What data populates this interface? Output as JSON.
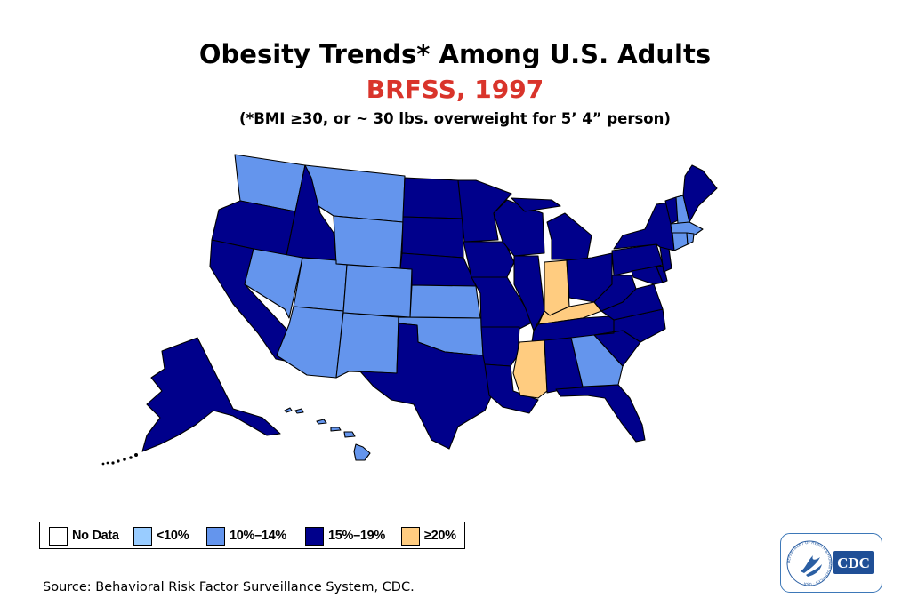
{
  "title": "Obesity Trends* Among U.S. Adults",
  "subtitle": "BRFSS, 1997",
  "note": "(*BMI ≥30, or ~ 30 lbs. overweight for 5’ 4” person)",
  "source": "Source: Behavioral Risk Factor Surveillance System, CDC.",
  "logo": {
    "text": "CDC",
    "ring_text": "DEPARTMENT OF HEALTH & HUMAN SERVICES · USA"
  },
  "colors": {
    "no_data": "#ffffff",
    "lt10": "#99ccff",
    "c10_14": "#6495ed",
    "c15_19": "#00008b",
    "ge20": "#ffcc80",
    "border": "#000000"
  },
  "legend": [
    {
      "key": "no_data",
      "label": "No Data"
    },
    {
      "key": "lt10",
      "label": "<10%"
    },
    {
      "key": "c10_14",
      "label": "10%–14%"
    },
    {
      "key": "c15_19",
      "label": "15%–19%"
    },
    {
      "key": "ge20",
      "label": "≥20%"
    }
  ],
  "states": {
    "WA": "c10_14",
    "OR": "c15_19",
    "CA": "c15_19",
    "ID": "c15_19",
    "NV": "c10_14",
    "MT": "c10_14",
    "WY": "c10_14",
    "UT": "c10_14",
    "CO": "c10_14",
    "AZ": "c10_14",
    "NM": "c10_14",
    "ND": "c15_19",
    "SD": "c15_19",
    "NE": "c15_19",
    "KS": "c10_14",
    "OK": "c10_14",
    "TX": "c15_19",
    "MN": "c15_19",
    "IA": "c15_19",
    "MO": "c15_19",
    "AR": "c15_19",
    "LA": "c15_19",
    "WI": "c15_19",
    "IL": "c15_19",
    "MI": "c15_19",
    "IN": "ge20",
    "OH": "c15_19",
    "KY": "ge20",
    "TN": "c15_19",
    "MS": "ge20",
    "AL": "c15_19",
    "GA": "c10_14",
    "FL": "c15_19",
    "SC": "c15_19",
    "NC": "c15_19",
    "VA": "c15_19",
    "WV": "c15_19",
    "MD": "c15_19",
    "DE": "c15_19",
    "PA": "c15_19",
    "NJ": "c15_19",
    "NY": "c15_19",
    "CT": "c10_14",
    "RI": "c10_14",
    "MA": "c10_14",
    "VT": "c15_19",
    "NH": "c10_14",
    "ME": "c15_19",
    "AK": "c15_19",
    "HI": "c10_14"
  }
}
